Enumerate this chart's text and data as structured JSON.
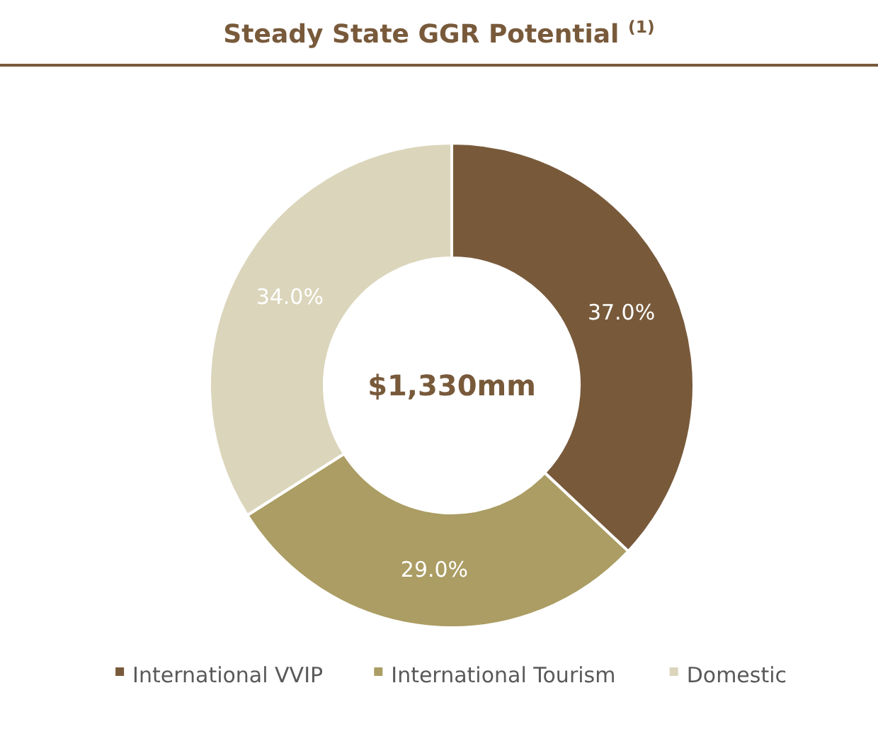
{
  "chart_data": {
    "type": "donut",
    "title": "Steady State GGR Potential $^{(1)}$",
    "categories": [
      "International VVIP",
      "International Tourism",
      "Domestic"
    ],
    "values": [
      37,
      29,
      34
    ],
    "colors": [
      "#785a3b",
      "#ab9d63",
      "#dbd5bb"
    ],
    "value_labels": [
      "37.0%",
      "29.0%",
      "34.0%"
    ],
    "annotations": [
      "$1,330mm"
    ],
    "legend": "bottom"
  }
}
